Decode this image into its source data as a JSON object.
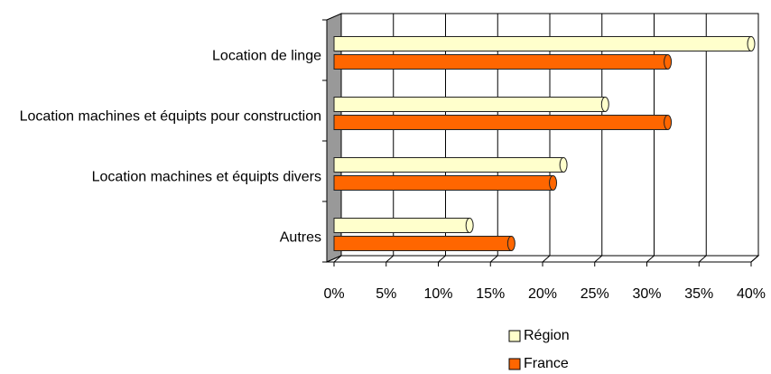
{
  "chart_data": {
    "type": "hbar",
    "categories": [
      "Location de linge",
      "Location machines et équipts pour construction",
      "Location machines et équipts divers",
      "Autres"
    ],
    "series": [
      {
        "name": "Région",
        "color": "#ffffcc",
        "values": [
          40,
          26,
          22,
          13
        ]
      },
      {
        "name": "France",
        "color": "#ff6600",
        "values": [
          32,
          32,
          21,
          17
        ]
      }
    ],
    "xlim": [
      0,
      40
    ],
    "xticks": [
      {
        "value": 0,
        "label": "0%"
      },
      {
        "value": 5,
        "label": "5%"
      },
      {
        "value": 10,
        "label": "10%"
      },
      {
        "value": 15,
        "label": "15%"
      },
      {
        "value": 20,
        "label": "20%"
      },
      {
        "value": 25,
        "label": "25%"
      },
      {
        "value": 30,
        "label": "30%"
      },
      {
        "value": 35,
        "label": "35%"
      },
      {
        "value": 40,
        "label": "40%"
      }
    ],
    "grid": true,
    "legend": "bottom"
  }
}
